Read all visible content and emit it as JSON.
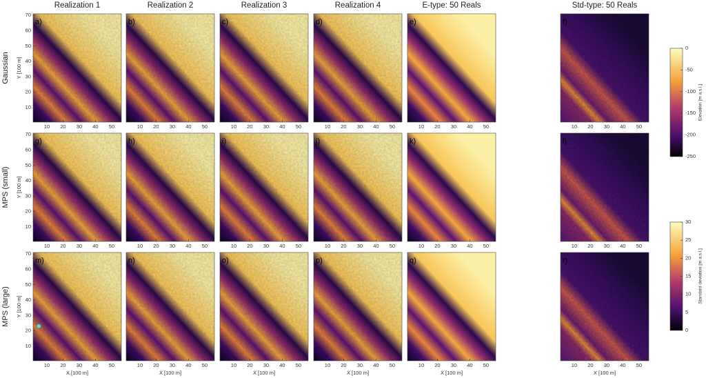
{
  "columns": [
    "Realization 1",
    "Realization 2",
    "Realization 3",
    "Realization 4",
    "E-type: 50 Reals",
    "Std-type: 50 Reals"
  ],
  "rows": [
    "Gaussian",
    "MPS (small)",
    "MPS (large)"
  ],
  "panel_labels": [
    [
      "a)",
      "b)",
      "c)",
      "d)",
      "e)",
      "f)"
    ],
    [
      "g)",
      "h)",
      "i)",
      "j)",
      "k)",
      "l)"
    ],
    [
      "m)",
      "n)",
      "o)",
      "p)",
      "q)",
      "r)"
    ]
  ],
  "axes": {
    "xlabel": "X [100 m]",
    "ylabel": "Y [100 m]",
    "xlim": [
      1.5,
      56
    ],
    "ylim": [
      0.5,
      71
    ],
    "xticks": [
      10,
      20,
      30,
      40,
      50
    ],
    "yticks": [
      10,
      20,
      30,
      40,
      50,
      60,
      70
    ]
  },
  "colorbars": [
    {
      "label": "Elevation [m a.s.l.]",
      "ylim": [
        -250,
        0
      ],
      "yticks": [
        0,
        -50,
        -100,
        -150,
        -200,
        -250
      ]
    },
    {
      "label": "Standard deviation [m a.s.l.]",
      "ylim": [
        0,
        30
      ],
      "yticks": [
        0,
        5,
        10,
        15,
        20,
        25,
        30
      ]
    }
  ],
  "marker": {
    "x": 5,
    "y": 23
  }
}
